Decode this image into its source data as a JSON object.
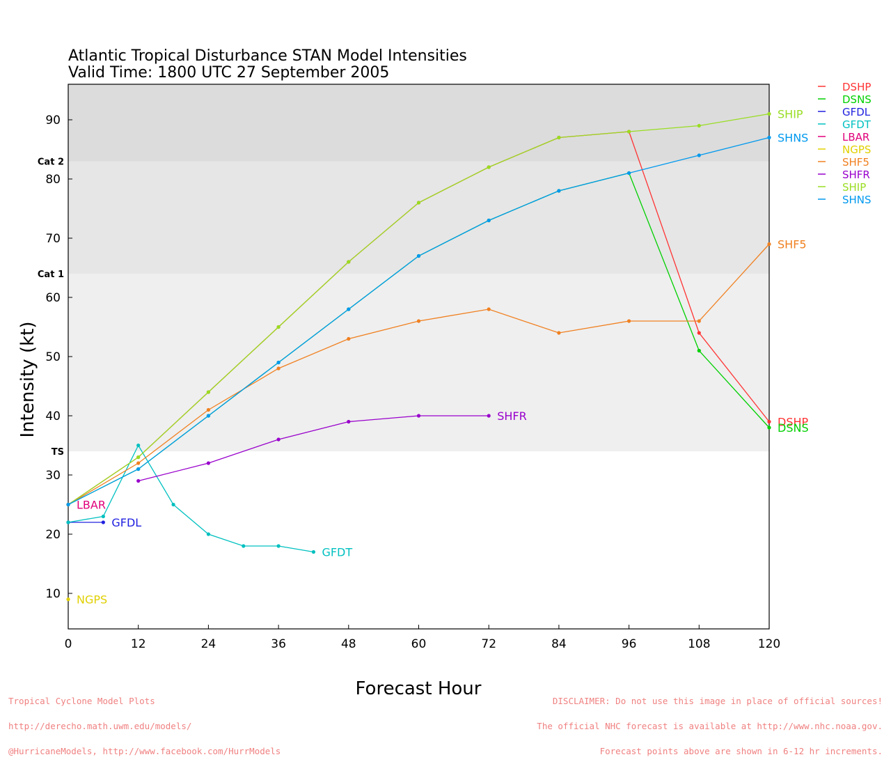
{
  "footer": {
    "left": [
      "Tropical Cyclone Model Plots",
      "http://derecho.math.uwm.edu/models/",
      "@HurricaneModels, http://www.facebook.com/HurrModels"
    ],
    "right": [
      "DISCLAIMER: Do not use this image in place of official sources!",
      "The official NHC forecast is available at http://www.nhc.noaa.gov.",
      "Forecast points above are shown in 6-12 hr increments."
    ]
  },
  "chart_data": {
    "type": "line",
    "title": "Atlantic Tropical Disturbance STAN Model Intensities",
    "subtitle": "Valid Time: 1800 UTC 27 September 2005",
    "xlabel": "Forecast Hour",
    "ylabel": "Intensity (kt)",
    "xlim": [
      0,
      120
    ],
    "ylim": [
      4,
      96
    ],
    "xticks": [
      0,
      12,
      24,
      36,
      48,
      60,
      72,
      84,
      96,
      108,
      120
    ],
    "yticks": [
      10,
      20,
      30,
      40,
      50,
      60,
      70,
      80,
      90
    ],
    "categories_bands": [
      {
        "label": "TS",
        "from": 34,
        "to": 64,
        "color": "#efefef"
      },
      {
        "label": "Cat 1",
        "from": 64,
        "to": 83,
        "color": "#e6e6e6"
      },
      {
        "label": "Cat 2",
        "from": 83,
        "to": 96,
        "color": "#dcdcdc"
      }
    ],
    "legend_position": "outside right, top",
    "series": [
      {
        "name": "DSHP",
        "color": "#ff3333",
        "points": [
          [
            0,
            25
          ],
          [
            12,
            33
          ],
          [
            24,
            44
          ],
          [
            36,
            55
          ],
          [
            48,
            66
          ],
          [
            60,
            76
          ],
          [
            72,
            82
          ],
          [
            84,
            87
          ],
          [
            96,
            88
          ],
          [
            108,
            54
          ],
          [
            120,
            39
          ]
        ]
      },
      {
        "name": "DSNS",
        "color": "#00d000",
        "points": [
          [
            0,
            25
          ],
          [
            12,
            31
          ],
          [
            24,
            40
          ],
          [
            36,
            49
          ],
          [
            48,
            58
          ],
          [
            60,
            67
          ],
          [
            72,
            73
          ],
          [
            84,
            78
          ],
          [
            96,
            81
          ],
          [
            108,
            51
          ],
          [
            120,
            38
          ]
        ]
      },
      {
        "name": "GFDL",
        "color": "#2020e0",
        "points": [
          [
            0,
            22
          ],
          [
            6,
            22
          ]
        ]
      },
      {
        "name": "GFDT",
        "color": "#00c0c0",
        "points": [
          [
            0,
            22
          ],
          [
            6,
            23
          ],
          [
            12,
            35
          ],
          [
            18,
            25
          ],
          [
            24,
            20
          ],
          [
            30,
            18
          ],
          [
            36,
            18
          ],
          [
            42,
            17
          ]
        ]
      },
      {
        "name": "LBAR",
        "color": "#e0007a",
        "points": [
          [
            0,
            25
          ]
        ]
      },
      {
        "name": "NGPS",
        "color": "#e0d000",
        "points": [
          [
            0,
            9
          ]
        ]
      },
      {
        "name": "SHF5",
        "color": "#f08020",
        "points": [
          [
            0,
            25
          ],
          [
            12,
            32
          ],
          [
            24,
            41
          ],
          [
            36,
            48
          ],
          [
            48,
            53
          ],
          [
            60,
            56
          ],
          [
            72,
            58
          ],
          [
            84,
            54
          ],
          [
            96,
            56
          ],
          [
            108,
            56
          ],
          [
            120,
            69
          ]
        ]
      },
      {
        "name": "SHFR",
        "color": "#9900cc",
        "points": [
          [
            12,
            29
          ],
          [
            24,
            32
          ],
          [
            36,
            36
          ],
          [
            48,
            39
          ],
          [
            60,
            40
          ],
          [
            72,
            40
          ]
        ]
      },
      {
        "name": "SHIP",
        "color": "#99dd22",
        "points": [
          [
            0,
            25
          ],
          [
            12,
            33
          ],
          [
            24,
            44
          ],
          [
            36,
            55
          ],
          [
            48,
            66
          ],
          [
            60,
            76
          ],
          [
            72,
            82
          ],
          [
            84,
            87
          ],
          [
            96,
            88
          ],
          [
            108,
            89
          ],
          [
            120,
            91
          ]
        ]
      },
      {
        "name": "SHNS",
        "color": "#0099ee",
        "points": [
          [
            0,
            25
          ],
          [
            12,
            31
          ],
          [
            24,
            40
          ],
          [
            36,
            49
          ],
          [
            48,
            58
          ],
          [
            60,
            67
          ],
          [
            72,
            73
          ],
          [
            84,
            78
          ],
          [
            96,
            81
          ],
          [
            108,
            84
          ],
          [
            120,
            87
          ]
        ]
      }
    ]
  }
}
